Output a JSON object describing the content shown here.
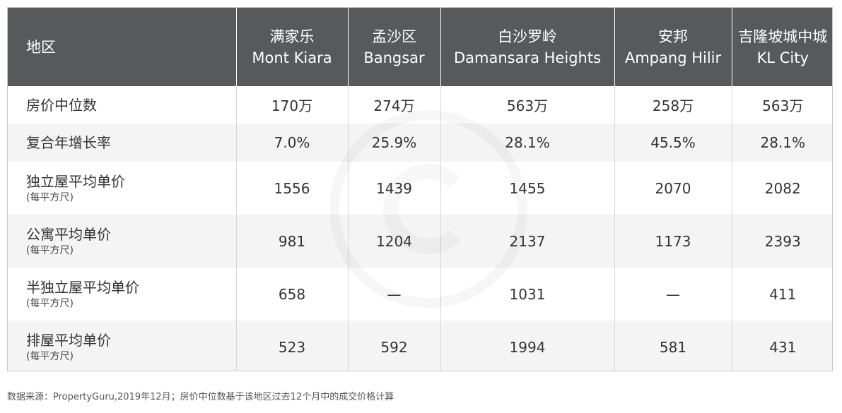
{
  "header": {
    "region_label": "地区",
    "columns": [
      {
        "cn": "满家乐",
        "en": "Mont Kiara"
      },
      {
        "cn": "孟沙区",
        "en": "Bangsar"
      },
      {
        "cn": "白沙罗岭",
        "en": "Damansara Heights"
      },
      {
        "cn": "安邦",
        "en": "Ampang Hilir"
      },
      {
        "cn": "吉隆坡城中城",
        "en": "KL City"
      }
    ]
  },
  "rows": [
    {
      "label": "房价中位数",
      "sub": "",
      "values": [
        "170万",
        "274万",
        "563万",
        "258万",
        "563万"
      ]
    },
    {
      "label": "复合年增长率",
      "sub": "",
      "values": [
        "7.0%",
        "25.9%",
        "28.1%",
        "45.5%",
        "28.1%"
      ]
    },
    {
      "label": "独立屋平均单价",
      "sub": "(每平方尺)",
      "values": [
        "1556",
        "1439",
        "1455",
        "2070",
        "2082"
      ]
    },
    {
      "label": "公寓平均单价",
      "sub": "(每平方尺)",
      "values": [
        "981",
        "1204",
        "2137",
        "1173",
        "2393"
      ]
    },
    {
      "label": "半独立屋平均单价",
      "sub": "(每平方尺)",
      "values": [
        "658",
        "—",
        "1031",
        "—",
        "411"
      ]
    },
    {
      "label": "排屋平均单价",
      "sub": "(每平方尺)",
      "values": [
        "523",
        "592",
        "1994",
        "581",
        "431"
      ]
    }
  ],
  "source_note": "数据来源：PropertyGuru,2019年12月；房价中位数基于该地区过去12个月中的成交价格计算",
  "colors": {
    "header_bg": "#58595b",
    "header_text": "#ffffff",
    "row_shade": "#f4f4f4",
    "text": "#333333"
  },
  "watermark": "propertyguru-logo-watermark"
}
